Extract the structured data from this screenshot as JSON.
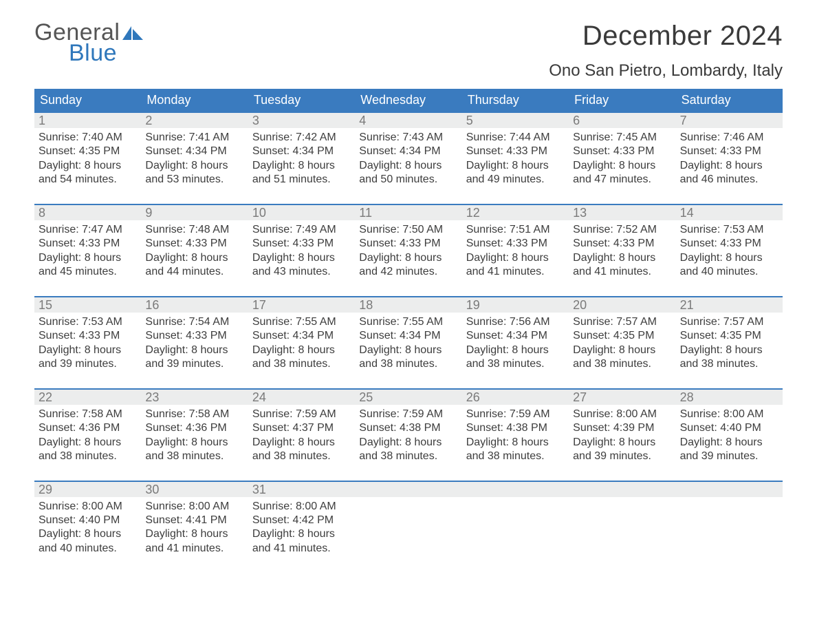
{
  "logo": {
    "word1": "General",
    "word2": "Blue",
    "color_gray": "#555555",
    "color_blue": "#2f77bb"
  },
  "title": "December 2024",
  "location": "Ono San Pietro, Lombardy, Italy",
  "colors": {
    "header_bg": "#3a7bbf",
    "header_text": "#ffffff",
    "daynum_bg": "#eceded",
    "daynum_text": "#7a7a7a",
    "body_text": "#3d3d3d",
    "week_border": "#3a7bbf",
    "page_bg": "#ffffff"
  },
  "day_headers": [
    "Sunday",
    "Monday",
    "Tuesday",
    "Wednesday",
    "Thursday",
    "Friday",
    "Saturday"
  ],
  "weeks": [
    [
      {
        "n": "1",
        "sr": "7:40 AM",
        "ss": "4:35 PM",
        "dl1": "Daylight: 8 hours",
        "dl2": "and 54 minutes."
      },
      {
        "n": "2",
        "sr": "7:41 AM",
        "ss": "4:34 PM",
        "dl1": "Daylight: 8 hours",
        "dl2": "and 53 minutes."
      },
      {
        "n": "3",
        "sr": "7:42 AM",
        "ss": "4:34 PM",
        "dl1": "Daylight: 8 hours",
        "dl2": "and 51 minutes."
      },
      {
        "n": "4",
        "sr": "7:43 AM",
        "ss": "4:34 PM",
        "dl1": "Daylight: 8 hours",
        "dl2": "and 50 minutes."
      },
      {
        "n": "5",
        "sr": "7:44 AM",
        "ss": "4:33 PM",
        "dl1": "Daylight: 8 hours",
        "dl2": "and 49 minutes."
      },
      {
        "n": "6",
        "sr": "7:45 AM",
        "ss": "4:33 PM",
        "dl1": "Daylight: 8 hours",
        "dl2": "and 47 minutes."
      },
      {
        "n": "7",
        "sr": "7:46 AM",
        "ss": "4:33 PM",
        "dl1": "Daylight: 8 hours",
        "dl2": "and 46 minutes."
      }
    ],
    [
      {
        "n": "8",
        "sr": "7:47 AM",
        "ss": "4:33 PM",
        "dl1": "Daylight: 8 hours",
        "dl2": "and 45 minutes."
      },
      {
        "n": "9",
        "sr": "7:48 AM",
        "ss": "4:33 PM",
        "dl1": "Daylight: 8 hours",
        "dl2": "and 44 minutes."
      },
      {
        "n": "10",
        "sr": "7:49 AM",
        "ss": "4:33 PM",
        "dl1": "Daylight: 8 hours",
        "dl2": "and 43 minutes."
      },
      {
        "n": "11",
        "sr": "7:50 AM",
        "ss": "4:33 PM",
        "dl1": "Daylight: 8 hours",
        "dl2": "and 42 minutes."
      },
      {
        "n": "12",
        "sr": "7:51 AM",
        "ss": "4:33 PM",
        "dl1": "Daylight: 8 hours",
        "dl2": "and 41 minutes."
      },
      {
        "n": "13",
        "sr": "7:52 AM",
        "ss": "4:33 PM",
        "dl1": "Daylight: 8 hours",
        "dl2": "and 41 minutes."
      },
      {
        "n": "14",
        "sr": "7:53 AM",
        "ss": "4:33 PM",
        "dl1": "Daylight: 8 hours",
        "dl2": "and 40 minutes."
      }
    ],
    [
      {
        "n": "15",
        "sr": "7:53 AM",
        "ss": "4:33 PM",
        "dl1": "Daylight: 8 hours",
        "dl2": "and 39 minutes."
      },
      {
        "n": "16",
        "sr": "7:54 AM",
        "ss": "4:33 PM",
        "dl1": "Daylight: 8 hours",
        "dl2": "and 39 minutes."
      },
      {
        "n": "17",
        "sr": "7:55 AM",
        "ss": "4:34 PM",
        "dl1": "Daylight: 8 hours",
        "dl2": "and 38 minutes."
      },
      {
        "n": "18",
        "sr": "7:55 AM",
        "ss": "4:34 PM",
        "dl1": "Daylight: 8 hours",
        "dl2": "and 38 minutes."
      },
      {
        "n": "19",
        "sr": "7:56 AM",
        "ss": "4:34 PM",
        "dl1": "Daylight: 8 hours",
        "dl2": "and 38 minutes."
      },
      {
        "n": "20",
        "sr": "7:57 AM",
        "ss": "4:35 PM",
        "dl1": "Daylight: 8 hours",
        "dl2": "and 38 minutes."
      },
      {
        "n": "21",
        "sr": "7:57 AM",
        "ss": "4:35 PM",
        "dl1": "Daylight: 8 hours",
        "dl2": "and 38 minutes."
      }
    ],
    [
      {
        "n": "22",
        "sr": "7:58 AM",
        "ss": "4:36 PM",
        "dl1": "Daylight: 8 hours",
        "dl2": "and 38 minutes."
      },
      {
        "n": "23",
        "sr": "7:58 AM",
        "ss": "4:36 PM",
        "dl1": "Daylight: 8 hours",
        "dl2": "and 38 minutes."
      },
      {
        "n": "24",
        "sr": "7:59 AM",
        "ss": "4:37 PM",
        "dl1": "Daylight: 8 hours",
        "dl2": "and 38 minutes."
      },
      {
        "n": "25",
        "sr": "7:59 AM",
        "ss": "4:38 PM",
        "dl1": "Daylight: 8 hours",
        "dl2": "and 38 minutes."
      },
      {
        "n": "26",
        "sr": "7:59 AM",
        "ss": "4:38 PM",
        "dl1": "Daylight: 8 hours",
        "dl2": "and 38 minutes."
      },
      {
        "n": "27",
        "sr": "8:00 AM",
        "ss": "4:39 PM",
        "dl1": "Daylight: 8 hours",
        "dl2": "and 39 minutes."
      },
      {
        "n": "28",
        "sr": "8:00 AM",
        "ss": "4:40 PM",
        "dl1": "Daylight: 8 hours",
        "dl2": "and 39 minutes."
      }
    ],
    [
      {
        "n": "29",
        "sr": "8:00 AM",
        "ss": "4:40 PM",
        "dl1": "Daylight: 8 hours",
        "dl2": "and 40 minutes."
      },
      {
        "n": "30",
        "sr": "8:00 AM",
        "ss": "4:41 PM",
        "dl1": "Daylight: 8 hours",
        "dl2": "and 41 minutes."
      },
      {
        "n": "31",
        "sr": "8:00 AM",
        "ss": "4:42 PM",
        "dl1": "Daylight: 8 hours",
        "dl2": "and 41 minutes."
      },
      null,
      null,
      null,
      null
    ]
  ],
  "labels": {
    "sunrise": "Sunrise: ",
    "sunset": "Sunset: "
  }
}
